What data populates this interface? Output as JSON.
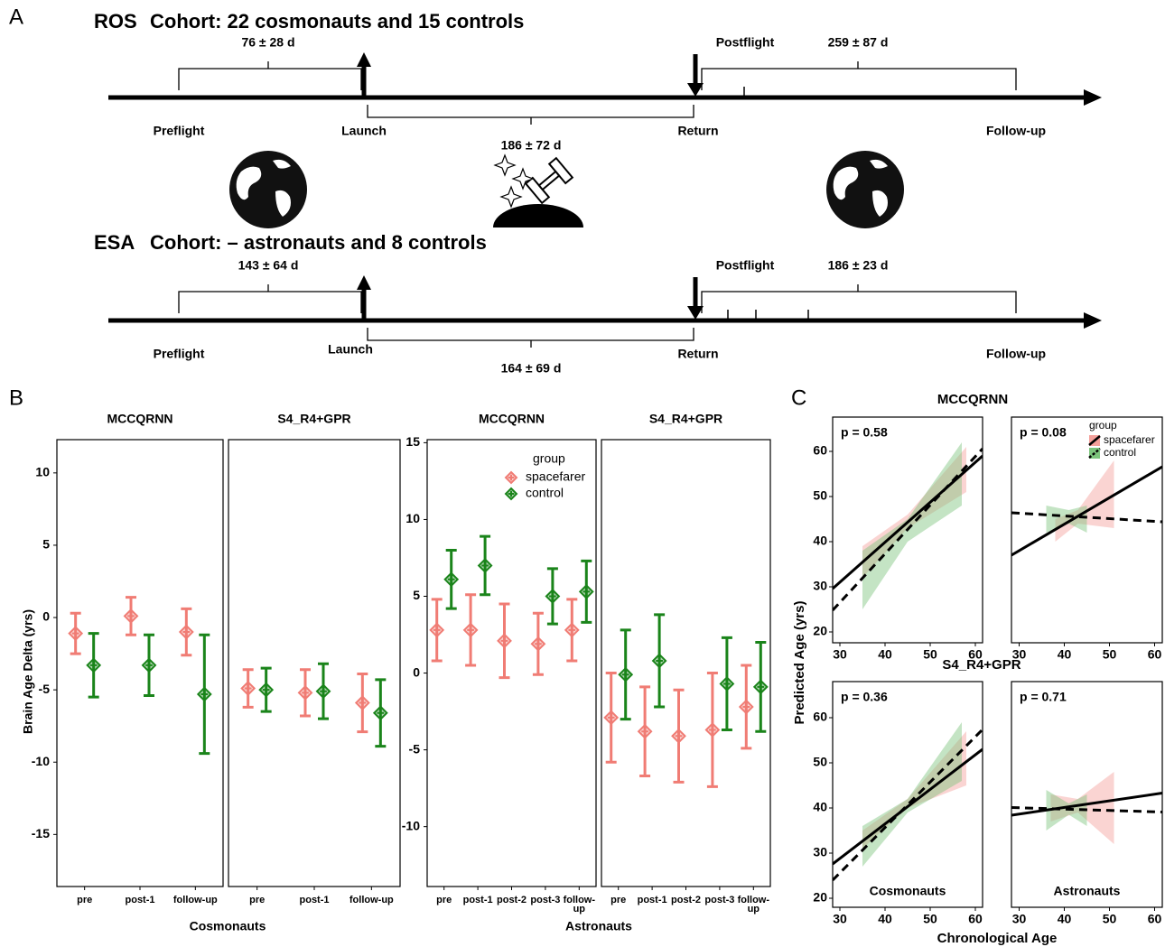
{
  "panel_labels": [
    "A",
    "B",
    "C"
  ],
  "timeline": {
    "cohorts": [
      {
        "name": "ROS",
        "cohort": "Cohort: 22 cosmonauts and 15 controls",
        "preflight_duration": "76 ± 28 d",
        "flight_duration": "186 ± 72 d",
        "postflight_duration": "259 ± 87 d",
        "labels": {
          "preflight": "Preflight",
          "launch": "Launch",
          "return": "Return",
          "postflight": "Postflight",
          "follow_up": "Follow-up"
        }
      },
      {
        "name": "ESA",
        "cohort": "Cohort: – astronauts and 8 controls",
        "preflight_duration": "143 ± 64 d",
        "flight_duration": "164 ± 69 d",
        "postflight_duration": "186 ± 23 d",
        "labels": {
          "preflight": "Preflight",
          "launch": "Launch",
          "return": "Return",
          "postflight": "Postflight",
          "follow_up": "Follow-up"
        }
      }
    ]
  },
  "figure_b": {
    "y_label": "Brain Age Delta (yrs)",
    "x_labels": [
      "Cosmonauts",
      "Astronauts"
    ]
  },
  "figure_c": {
    "row_titles": [
      "MCCQRNN",
      "S4_R4+GPR"
    ],
    "y_label": "Predicted Age (yrs)",
    "x_label": "Chronological Age"
  },
  "chart_data": [
    {
      "type": "errorbar",
      "title": "MCCQRNN",
      "categories": [
        "pre",
        "post-1",
        "follow-up"
      ],
      "ylim": [
        -18.6,
        12.3
      ],
      "yticks": [
        10,
        5,
        0,
        -5,
        -10,
        -15
      ],
      "series": [
        {
          "name": "spacefarer",
          "color": "#f07c74",
          "values": [
            -1.1,
            0.1,
            -1.0
          ],
          "errors": [
            1.4,
            1.3,
            1.6
          ]
        },
        {
          "name": "control",
          "color": "#1a841a",
          "values": [
            -3.3,
            -3.3,
            -5.3
          ],
          "errors": [
            2.2,
            2.1,
            4.1
          ]
        }
      ]
    },
    {
      "type": "errorbar",
      "title": "S4_R4+GPR",
      "categories": [
        "pre",
        "post-1",
        "follow-up"
      ],
      "ylim": [
        -18.6,
        12.3
      ],
      "series": [
        {
          "name": "spacefarer",
          "color": "#f07c74",
          "values": [
            -4.9,
            -5.2,
            -5.9
          ],
          "errors": [
            1.3,
            1.6,
            2.0
          ]
        },
        {
          "name": "control",
          "color": "#1a841a",
          "values": [
            -5.0,
            -5.1,
            -6.6
          ],
          "errors": [
            1.5,
            1.9,
            2.3
          ]
        }
      ]
    },
    {
      "type": "errorbar",
      "title": "MCCQRNN",
      "categories": [
        "pre",
        "post-1",
        "post-2",
        "post-3",
        "follow-up"
      ],
      "ylim": [
        -13.9,
        15.2
      ],
      "yticks": [
        15,
        10,
        5,
        0,
        -5,
        -10
      ],
      "legend": "top-right",
      "legend_title": "group",
      "series": [
        {
          "name": "spacefarer",
          "color": "#f07c74",
          "values": [
            2.8,
            2.8,
            2.1,
            1.9,
            2.8
          ],
          "errors": [
            2.0,
            2.3,
            2.4,
            2.0,
            2.0
          ]
        },
        {
          "name": "control",
          "color": "#1a841a",
          "values": [
            6.1,
            7.0,
            null,
            5.0,
            5.3
          ],
          "errors": [
            1.9,
            1.9,
            null,
            1.8,
            2.0
          ]
        }
      ]
    },
    {
      "type": "errorbar",
      "title": "S4_R4+GPR",
      "categories": [
        "pre",
        "post-1",
        "post-2",
        "post-3",
        "follow-up"
      ],
      "ylim": [
        -13.9,
        15.2
      ],
      "series": [
        {
          "name": "spacefarer",
          "color": "#f07c74",
          "values": [
            -2.9,
            -3.8,
            -4.1,
            -3.7,
            -2.2
          ],
          "errors": [
            2.9,
            2.9,
            3.0,
            3.7,
            2.7
          ]
        },
        {
          "name": "control",
          "color": "#1a841a",
          "values": [
            -0.1,
            0.8,
            null,
            -0.7,
            -0.9
          ],
          "errors": [
            2.9,
            3.0,
            null,
            3.0,
            2.9
          ]
        }
      ]
    },
    {
      "type": "regression",
      "annotation": "p = 0.58",
      "xlim": [
        28.4,
        61.6
      ],
      "ylim": [
        17.6,
        67.6
      ],
      "xticks": [
        30,
        40,
        50,
        60
      ],
      "yticks": [
        20,
        30,
        40,
        50,
        60
      ],
      "series": [
        {
          "name": "spacefarer",
          "color": "#f4a09b",
          "linestyle": "solid",
          "x": [
            28.4,
            61.6
          ],
          "values": [
            29.6,
            59.0
          ],
          "band_x": [
            35,
            45,
            58
          ],
          "band_lower": [
            32,
            43,
            51
          ],
          "band_upper": [
            39,
            46,
            61
          ]
        },
        {
          "name": "control",
          "color": "#7cc47c",
          "linestyle": "dashed",
          "x": [
            28.4,
            61.6
          ],
          "values": [
            24.8,
            60.6
          ],
          "band_x": [
            35,
            45,
            57
          ],
          "band_lower": [
            25,
            40,
            48
          ],
          "band_upper": [
            38,
            45,
            62
          ]
        }
      ]
    },
    {
      "type": "regression",
      "annotation": "p = 0.08",
      "xlim": [
        28.3,
        61.7
      ],
      "ylim": [
        17.6,
        67.6
      ],
      "xticks": [
        30,
        40,
        50,
        60
      ],
      "legend": "top-right",
      "legend_title": "group",
      "series": [
        {
          "name": "spacefarer",
          "color": "#f4a09b",
          "linestyle": "solid",
          "x": [
            28.3,
            61.7
          ],
          "values": [
            37.0,
            56.6
          ],
          "band_x": [
            38,
            43,
            51
          ],
          "band_lower": [
            40,
            44,
            43
          ],
          "band_upper": [
            45,
            47,
            58
          ]
        },
        {
          "name": "control",
          "color": "#7cc47c",
          "linestyle": "dashed",
          "x": [
            28.3,
            61.7
          ],
          "values": [
            46.4,
            44.4
          ],
          "band_x": [
            36,
            41,
            45
          ],
          "band_lower": [
            42,
            44,
            42
          ],
          "band_upper": [
            48,
            47,
            48
          ]
        }
      ]
    },
    {
      "type": "regression",
      "annotation": "p = 0.36",
      "group_label": "Cosmonauts",
      "xlim": [
        28.4,
        61.6
      ],
      "ylim": [
        18,
        68
      ],
      "xticks": [
        30,
        40,
        50,
        60
      ],
      "yticks": [
        20,
        30,
        40,
        50,
        60
      ],
      "series": [
        {
          "name": "spacefarer",
          "color": "#f4a09b",
          "linestyle": "solid",
          "x": [
            28.4,
            61.6
          ],
          "values": [
            27.6,
            53.0
          ],
          "band_x": [
            35,
            45,
            58
          ],
          "band_lower": [
            31,
            40,
            45
          ],
          "band_upper": [
            35,
            42,
            57
          ]
        },
        {
          "name": "control",
          "color": "#7cc47c",
          "linestyle": "dashed",
          "x": [
            28.4,
            61.6
          ],
          "values": [
            24.0,
            57.4
          ],
          "band_x": [
            35,
            45,
            57
          ],
          "band_lower": [
            27,
            39,
            46
          ],
          "band_upper": [
            36,
            42,
            59
          ]
        }
      ]
    },
    {
      "type": "regression",
      "annotation": "p = 0.71",
      "group_label": "Astronauts",
      "xlim": [
        28.3,
        61.7
      ],
      "ylim": [
        18,
        68
      ],
      "xticks": [
        30,
        40,
        50,
        60
      ],
      "series": [
        {
          "name": "spacefarer",
          "color": "#f4a09b",
          "linestyle": "solid",
          "x": [
            28.3,
            61.7
          ],
          "values": [
            38.4,
            43.3
          ],
          "band_x": [
            37,
            43,
            51
          ],
          "band_lower": [
            37,
            39,
            32
          ],
          "band_upper": [
            43,
            42,
            48
          ]
        },
        {
          "name": "control",
          "color": "#7cc47c",
          "linestyle": "dashed",
          "x": [
            28.3,
            61.7
          ],
          "values": [
            40.1,
            39.1
          ],
          "band_x": [
            36,
            41,
            45
          ],
          "band_lower": [
            35,
            38.5,
            36
          ],
          "band_upper": [
            44,
            41,
            43
          ]
        }
      ]
    }
  ]
}
